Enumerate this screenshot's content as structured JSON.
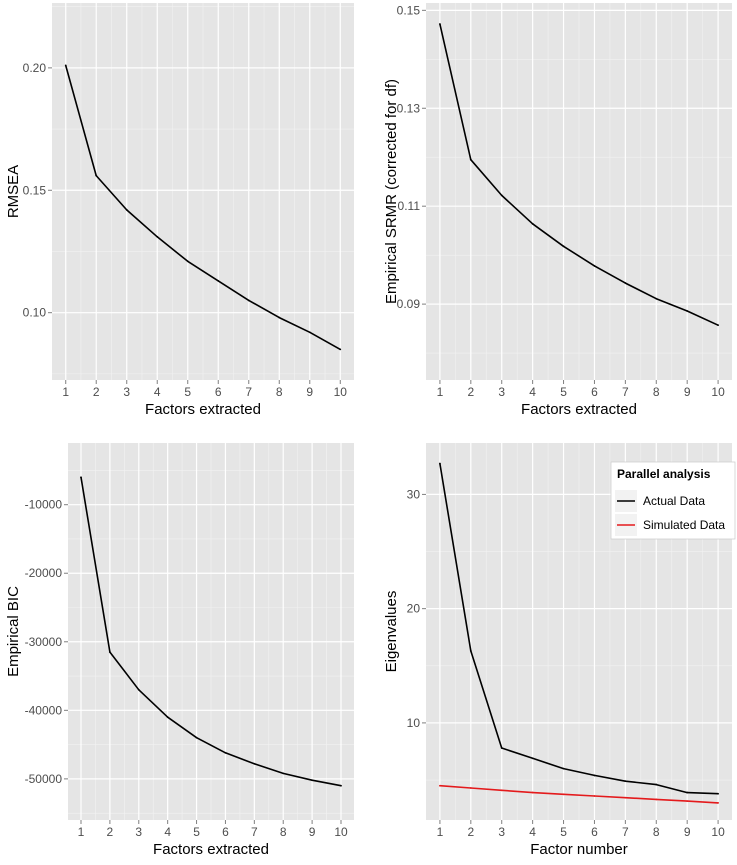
{
  "chart_data": [
    {
      "type": "line",
      "xlabel": "Factors extracted",
      "ylabel": "RMSEA",
      "x": [
        1,
        2,
        3,
        4,
        5,
        6,
        7,
        8,
        9,
        10
      ],
      "xlim": [
        0.55,
        10.45
      ],
      "ylim": [
        0.0725,
        0.2265
      ],
      "xticks": [
        1,
        2,
        3,
        4,
        5,
        6,
        7,
        8,
        9,
        10
      ],
      "yticks": [
        {
          "value": 0.1,
          "label": "0.10"
        },
        {
          "value": 0.15,
          "label": "0.15"
        },
        {
          "value": 0.2,
          "label": "0.20"
        }
      ],
      "legend": null,
      "series": [
        {
          "name": "RMSEA",
          "color": "#000000",
          "values": [
            0.201,
            0.156,
            0.142,
            0.131,
            0.121,
            0.113,
            0.105,
            0.098,
            0.092,
            0.085
          ]
        }
      ]
    },
    {
      "type": "line",
      "xlabel": "Factors extracted",
      "ylabel": "Empirical SRMR (corrected for df)",
      "x": [
        1,
        2,
        3,
        4,
        5,
        6,
        7,
        8,
        9,
        10
      ],
      "xlim": [
        0.55,
        10.45
      ],
      "ylim": [
        0.0745,
        0.1515
      ],
      "xticks": [
        1,
        2,
        3,
        4,
        5,
        6,
        7,
        8,
        9,
        10
      ],
      "yticks": [
        {
          "value": 0.09,
          "label": "0.09"
        },
        {
          "value": 0.11,
          "label": "0.11"
        },
        {
          "value": 0.13,
          "label": "0.13"
        },
        {
          "value": 0.15,
          "label": "0.15"
        }
      ],
      "legend": null,
      "series": [
        {
          "name": "SRMR",
          "color": "#000000",
          "values": [
            0.1472,
            0.1195,
            0.1122,
            0.1064,
            0.1018,
            0.0978,
            0.0943,
            0.0911,
            0.0886,
            0.0857
          ]
        }
      ]
    },
    {
      "type": "line",
      "xlabel": "Factors extracted",
      "ylabel": "Empirical BIC",
      "x": [
        1,
        2,
        3,
        4,
        5,
        6,
        7,
        8,
        9,
        10
      ],
      "xlim": [
        0.55,
        10.45
      ],
      "ylim": [
        -56000,
        -1000
      ],
      "xticks": [
        1,
        2,
        3,
        4,
        5,
        6,
        7,
        8,
        9,
        10
      ],
      "yticks": [
        {
          "value": -50000,
          "label": "-50000"
        },
        {
          "value": -40000,
          "label": "-40000"
        },
        {
          "value": -30000,
          "label": "-30000"
        },
        {
          "value": -20000,
          "label": "-20000"
        },
        {
          "value": -10000,
          "label": "-10000"
        }
      ],
      "legend": null,
      "series": [
        {
          "name": "BIC",
          "color": "#000000",
          "values": [
            -6000,
            -31500,
            -37000,
            -41000,
            -44000,
            -46200,
            -47800,
            -49200,
            -50200,
            -51000
          ]
        }
      ]
    },
    {
      "type": "line",
      "xlabel": "Factor number",
      "ylabel": "Eigenvalues",
      "x": [
        1,
        2,
        3,
        4,
        5,
        6,
        7,
        8,
        9,
        10
      ],
      "xlim": [
        0.55,
        10.45
      ],
      "ylim": [
        1.5,
        34.5
      ],
      "xticks": [
        1,
        2,
        3,
        4,
        5,
        6,
        7,
        8,
        9,
        10
      ],
      "yticks": [
        {
          "value": 10,
          "label": "10"
        },
        {
          "value": 20,
          "label": "20"
        },
        {
          "value": 30,
          "label": "30"
        }
      ],
      "legend": {
        "title": "Parallel analysis",
        "position": "top-right",
        "entries": [
          {
            "label": "Actual Data",
            "color": "#000000"
          },
          {
            "label": "Simulated Data",
            "color": "#e41a1c"
          }
        ]
      },
      "series": [
        {
          "name": "Actual Data",
          "color": "#000000",
          "values": [
            32.7,
            16.3,
            7.8,
            6.9,
            6.0,
            5.4,
            4.9,
            4.6,
            3.9,
            3.8
          ]
        },
        {
          "name": "Simulated Data",
          "color": "#e41a1c",
          "values": [
            4.5,
            4.3,
            4.1,
            3.9,
            3.75,
            3.6,
            3.45,
            3.3,
            3.15,
            3.0
          ]
        }
      ]
    }
  ]
}
